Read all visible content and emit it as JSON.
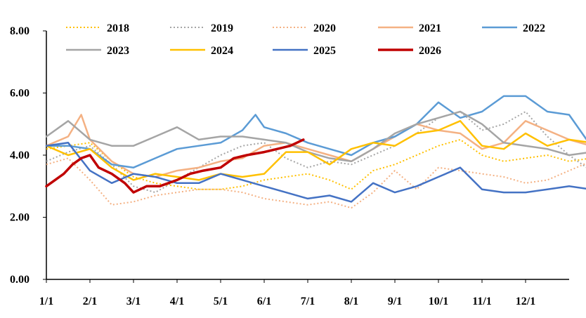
{
  "chart_data": {
    "type": "line",
    "title": "",
    "xlabel": "",
    "ylabel": "",
    "ylim": [
      0,
      8
    ],
    "yticks": [
      "0.00",
      "2.00",
      "4.00",
      "6.00",
      "8.00"
    ],
    "xticks": [
      "1/1",
      "2/1",
      "3/1",
      "4/1",
      "5/1",
      "6/1",
      "7/1",
      "8/1",
      "9/1",
      "10/1",
      "11/1",
      "12/1"
    ],
    "x_unit": "month",
    "legend": "top",
    "grid": false,
    "series": [
      {
        "name": "2018",
        "color": "#FFC000",
        "style": "dotted",
        "width": 2,
        "x": [
          0,
          0.5,
          1,
          1.5,
          2,
          2.5,
          3,
          3.5,
          4,
          4.5,
          5,
          5.5,
          6,
          6.5,
          7,
          7.5,
          8,
          8.5,
          9,
          9.5,
          10,
          10.5,
          11,
          11.5,
          12,
          12.5
        ],
        "y": [
          4.2,
          4.3,
          4.4,
          3.8,
          3.3,
          3.1,
          3.0,
          2.9,
          2.9,
          3.0,
          3.2,
          3.3,
          3.4,
          3.2,
          2.9,
          3.5,
          3.7,
          4.0,
          4.3,
          4.5,
          4.0,
          3.8,
          3.9,
          4.0,
          3.8,
          3.9
        ]
      },
      {
        "name": "2019",
        "color": "#A5A5A5",
        "style": "dotted",
        "width": 2,
        "x": [
          0,
          0.5,
          1,
          1.5,
          2,
          2.5,
          3,
          3.5,
          4,
          4.5,
          5,
          5.5,
          6,
          6.5,
          7,
          7.5,
          8,
          8.5,
          9,
          9.5,
          10,
          10.5,
          11,
          11.5,
          12,
          12.5
        ],
        "y": [
          3.8,
          4.1,
          4.3,
          3.7,
          3.0,
          2.8,
          3.2,
          3.6,
          4.0,
          4.3,
          4.4,
          3.9,
          3.6,
          3.8,
          3.7,
          4.0,
          4.3,
          4.7,
          5.2,
          5.4,
          4.8,
          5.0,
          5.4,
          4.6,
          4.0,
          3.5
        ]
      },
      {
        "name": "2020",
        "color": "#F4B183",
        "style": "dotted",
        "width": 2,
        "x": [
          0,
          0.5,
          1,
          1.5,
          2,
          2.5,
          3,
          3.5,
          4,
          4.5,
          5,
          5.5,
          6,
          6.5,
          7,
          7.5,
          8,
          8.5,
          9,
          9.5,
          10,
          10.5,
          11,
          11.5,
          12,
          12.5
        ],
        "y": [
          3.7,
          3.9,
          3.2,
          2.4,
          2.5,
          2.7,
          2.8,
          2.9,
          2.9,
          2.8,
          2.6,
          2.5,
          2.4,
          2.5,
          2.3,
          2.8,
          3.5,
          2.9,
          3.6,
          3.5,
          3.4,
          3.3,
          3.1,
          3.2,
          3.5,
          3.8
        ]
      },
      {
        "name": "2021",
        "color": "#F4B183",
        "style": "solid",
        "width": 2.5,
        "x": [
          0,
          0.5,
          0.8,
          1,
          1.5,
          2,
          2.5,
          3,
          3.5,
          4,
          4.5,
          5,
          5.5,
          6,
          6.5,
          7,
          7.5,
          8,
          8.5,
          9,
          9.5,
          10,
          10.5,
          11,
          11.5,
          12,
          12.5
        ],
        "y": [
          4.3,
          4.6,
          5.3,
          4.5,
          3.8,
          3.4,
          3.3,
          3.5,
          3.6,
          3.8,
          3.9,
          4.3,
          4.4,
          4.2,
          4.0,
          3.8,
          4.2,
          4.6,
          5.0,
          4.8,
          4.7,
          4.2,
          4.4,
          5.1,
          4.8,
          4.5,
          4.3
        ]
      },
      {
        "name": "2022",
        "color": "#5B9BD5",
        "style": "solid",
        "width": 2.5,
        "x": [
          0,
          0.5,
          1,
          1.5,
          2,
          2.5,
          3,
          3.5,
          4,
          4.5,
          4.8,
          5,
          5.5,
          6,
          6.5,
          7,
          7.5,
          8,
          8.5,
          9,
          9.5,
          10,
          10.5,
          11,
          11.5,
          12,
          12.5
        ],
        "y": [
          4.3,
          4.3,
          4.2,
          3.7,
          3.6,
          3.9,
          4.2,
          4.3,
          4.4,
          4.8,
          5.3,
          4.9,
          4.7,
          4.4,
          4.2,
          4.0,
          4.4,
          4.6,
          5.0,
          5.7,
          5.2,
          5.4,
          5.9,
          5.9,
          5.4,
          5.3,
          4.3
        ]
      },
      {
        "name": "2023",
        "color": "#A5A5A5",
        "style": "solid",
        "width": 2.5,
        "x": [
          0,
          0.5,
          1,
          1.5,
          2,
          2.5,
          3,
          3.5,
          4,
          4.5,
          5,
          5.5,
          6,
          6.5,
          7,
          7.5,
          8,
          8.5,
          9,
          9.5,
          10,
          10.5,
          11,
          11.5,
          12,
          12.5
        ],
        "y": [
          4.6,
          5.1,
          4.5,
          4.3,
          4.3,
          4.6,
          4.9,
          4.5,
          4.6,
          4.6,
          4.5,
          4.4,
          4.1,
          3.9,
          3.8,
          4.2,
          4.7,
          5.0,
          5.2,
          5.4,
          5.0,
          4.4,
          4.3,
          4.2,
          4.0,
          4.1
        ]
      },
      {
        "name": "2024",
        "color": "#FFC000",
        "style": "solid",
        "width": 2.5,
        "x": [
          0,
          0.5,
          1,
          1.5,
          2,
          2.5,
          3,
          3.5,
          4,
          4.5,
          5,
          5.5,
          6,
          6.5,
          7,
          7.5,
          8,
          8.5,
          9,
          9.5,
          10,
          10.5,
          11,
          11.5,
          12,
          12.5
        ],
        "y": [
          4.3,
          4.0,
          4.2,
          3.6,
          3.2,
          3.4,
          3.3,
          3.2,
          3.4,
          3.3,
          3.4,
          4.1,
          4.1,
          3.7,
          4.2,
          4.4,
          4.3,
          4.7,
          4.8,
          5.1,
          4.3,
          4.2,
          4.7,
          4.3,
          4.5,
          4.4
        ]
      },
      {
        "name": "2025",
        "color": "#4472C4",
        "style": "solid",
        "width": 2.5,
        "x": [
          0,
          0.5,
          1,
          1.5,
          2,
          2.5,
          3,
          3.5,
          4,
          4.5,
          5,
          5.5,
          6,
          6.5,
          7,
          7.5,
          8,
          8.5,
          9,
          9.5,
          10,
          10.5,
          11,
          11.5,
          12,
          12.5
        ],
        "y": [
          4.3,
          4.4,
          3.5,
          3.1,
          3.4,
          3.3,
          3.1,
          3.1,
          3.4,
          3.2,
          3.0,
          2.8,
          2.6,
          2.7,
          2.5,
          3.1,
          2.8,
          3.0,
          3.3,
          3.6,
          2.9,
          2.8,
          2.8,
          2.9,
          3.0,
          2.9
        ]
      },
      {
        "name": "2026",
        "color": "#C00000",
        "style": "solid",
        "width": 3.5,
        "x": [
          0,
          0.2,
          0.4,
          0.6,
          0.8,
          1.0,
          1.2,
          1.5,
          1.8,
          2.0,
          2.3,
          2.6,
          3.0,
          3.3,
          3.6,
          4.0,
          4.3,
          4.6,
          5.0,
          5.3,
          5.6,
          5.9
        ],
        "y": [
          3.0,
          3.2,
          3.4,
          3.7,
          3.9,
          4.0,
          3.6,
          3.4,
          3.1,
          2.8,
          3.0,
          3.0,
          3.2,
          3.4,
          3.5,
          3.6,
          3.9,
          4.0,
          4.1,
          4.2,
          4.3,
          4.5
        ]
      }
    ]
  }
}
